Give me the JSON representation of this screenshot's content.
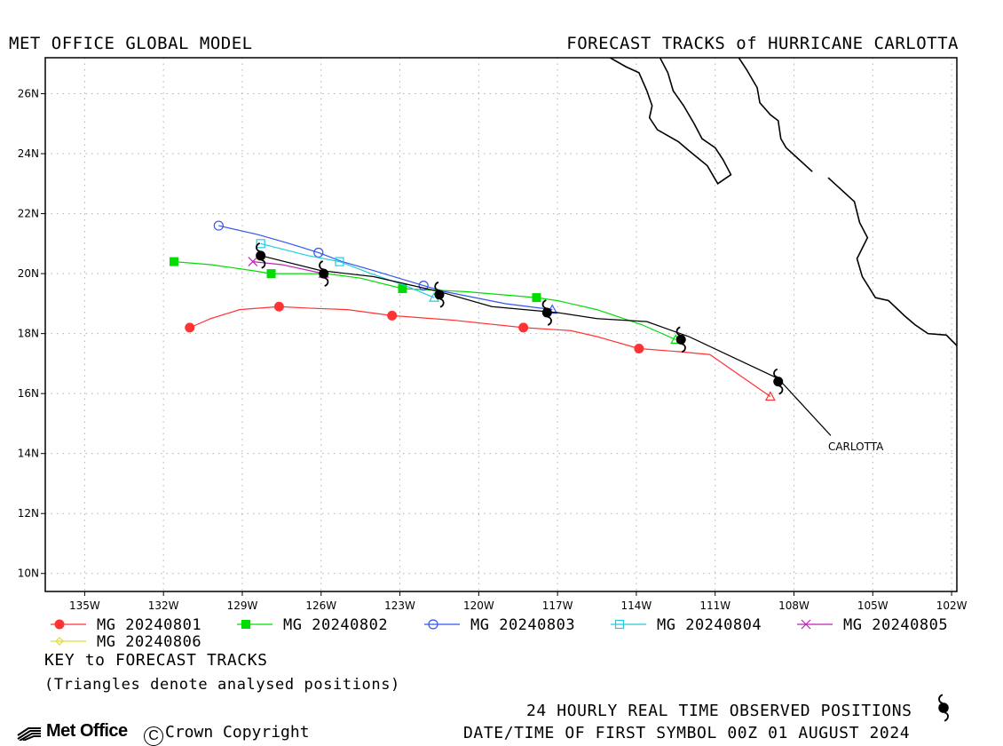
{
  "header": {
    "left": "MET OFFICE GLOBAL MODEL",
    "right": "FORECAST TRACKS of HURRICANE CARLOTTA"
  },
  "chart_data": {
    "type": "line",
    "title": "FORECAST TRACKS of HURRICANE CARLOTTA",
    "xlim": [
      -136.5,
      -101.8
    ],
    "ylim": [
      9.4,
      27.2
    ],
    "x_ticks": [
      {
        "value": -135,
        "label": "135W"
      },
      {
        "value": -132,
        "label": "132W"
      },
      {
        "value": -129,
        "label": "129W"
      },
      {
        "value": -126,
        "label": "126W"
      },
      {
        "value": -123,
        "label": "123W"
      },
      {
        "value": -120,
        "label": "120W"
      },
      {
        "value": -117,
        "label": "117W"
      },
      {
        "value": -114,
        "label": "114W"
      },
      {
        "value": -111,
        "label": "111W"
      },
      {
        "value": -108,
        "label": "108W"
      },
      {
        "value": -105,
        "label": "105W"
      },
      {
        "value": -102,
        "label": "102W"
      }
    ],
    "y_ticks": [
      {
        "value": 10,
        "label": "10N"
      },
      {
        "value": 12,
        "label": "12N"
      },
      {
        "value": 14,
        "label": "14N"
      },
      {
        "value": 16,
        "label": "16N"
      },
      {
        "value": 18,
        "label": "18N"
      },
      {
        "value": 20,
        "label": "20N"
      },
      {
        "value": 22,
        "label": "22N"
      },
      {
        "value": 24,
        "label": "24N"
      },
      {
        "value": 26,
        "label": "26N"
      }
    ],
    "grid": true,
    "observed_track": {
      "name": "CARLOTTA",
      "color": "#000000",
      "line": [
        [
          -106.6,
          14.6
        ],
        [
          -108.6,
          16.5
        ],
        [
          -112.0,
          17.9
        ],
        [
          -113.6,
          18.4
        ],
        [
          -115.5,
          18.5
        ],
        [
          -117.0,
          18.7
        ],
        [
          -119.5,
          18.9
        ],
        [
          -121.5,
          19.4
        ],
        [
          -124.0,
          19.9
        ],
        [
          -126.0,
          20.1
        ],
        [
          -128.3,
          20.6
        ]
      ],
      "symbols": [
        [
          -108.6,
          16.4
        ],
        [
          -112.3,
          17.8
        ],
        [
          -117.4,
          18.7
        ],
        [
          -121.5,
          19.3
        ],
        [
          -125.9,
          20.0
        ],
        [
          -128.3,
          20.6
        ]
      ]
    },
    "series": [
      {
        "name": "MG 20240801",
        "color": "#ff3333",
        "marker": "filled-circle",
        "analysed": [
          -108.9,
          15.9
        ],
        "line": [
          [
            -108.9,
            15.9
          ],
          [
            -111.2,
            17.3
          ],
          [
            -112.4,
            17.4
          ],
          [
            -113.9,
            17.5
          ],
          [
            -115.5,
            17.9
          ],
          [
            -116.5,
            18.1
          ],
          [
            -118.3,
            18.2
          ],
          [
            -121.0,
            18.45
          ],
          [
            -123.3,
            18.6
          ],
          [
            -125.0,
            18.8
          ],
          [
            -126.5,
            18.85
          ],
          [
            -127.6,
            18.9
          ],
          [
            -129.1,
            18.8
          ],
          [
            -130.2,
            18.5
          ],
          [
            -131.0,
            18.2
          ]
        ],
        "markers": [
          [
            -113.9,
            17.5
          ],
          [
            -118.3,
            18.2
          ],
          [
            -123.3,
            18.6
          ],
          [
            -127.6,
            18.9
          ],
          [
            -131.0,
            18.2
          ]
        ]
      },
      {
        "name": "MG 20240802",
        "color": "#00dd00",
        "marker": "filled-square",
        "analysed": [
          -112.5,
          17.8
        ],
        "line": [
          [
            -112.5,
            17.8
          ],
          [
            -113.8,
            18.3
          ],
          [
            -115.5,
            18.8
          ],
          [
            -117.0,
            19.1
          ],
          [
            -117.8,
            19.2
          ],
          [
            -120.5,
            19.4
          ],
          [
            -122.9,
            19.5
          ],
          [
            -124.5,
            19.85
          ],
          [
            -125.8,
            20.0
          ],
          [
            -127.9,
            20.0
          ],
          [
            -128.6,
            20.1
          ],
          [
            -130.2,
            20.3
          ],
          [
            -131.6,
            20.4
          ]
        ],
        "markers": [
          [
            -117.8,
            19.2
          ],
          [
            -122.9,
            19.5
          ],
          [
            -127.9,
            20.0
          ],
          [
            -131.6,
            20.4
          ]
        ]
      },
      {
        "name": "MG 20240803",
        "color": "#3355ee",
        "marker": "open-circle",
        "analysed": [
          -117.2,
          18.8
        ],
        "line": [
          [
            -117.2,
            18.8
          ],
          [
            -119.0,
            19.0
          ],
          [
            -121.3,
            19.4
          ],
          [
            -122.1,
            19.6
          ],
          [
            -124.0,
            20.1
          ],
          [
            -125.2,
            20.4
          ],
          [
            -126.1,
            20.7
          ],
          [
            -127.2,
            21.0
          ],
          [
            -128.4,
            21.3
          ],
          [
            -129.9,
            21.6
          ]
        ],
        "markers": [
          [
            -122.1,
            19.6
          ],
          [
            -126.1,
            20.7
          ],
          [
            -129.9,
            21.6
          ]
        ]
      },
      {
        "name": "MG 20240804",
        "color": "#22ccdd",
        "marker": "open-square",
        "analysed": [
          -121.7,
          19.2
        ],
        "line": [
          [
            -121.7,
            19.2
          ],
          [
            -122.8,
            19.6
          ],
          [
            -124.1,
            20.0
          ],
          [
            -125.3,
            20.4
          ],
          [
            -126.5,
            20.6
          ],
          [
            -127.4,
            20.8
          ],
          [
            -128.3,
            21.0
          ]
        ],
        "markers": [
          [
            -125.3,
            20.4
          ],
          [
            -128.3,
            21.0
          ]
        ]
      },
      {
        "name": "MG 20240805",
        "color": "#bb22bb",
        "marker": "cross",
        "analysed": [
          -125.9,
          20.0
        ],
        "line": [
          [
            -125.9,
            20.0
          ],
          [
            -127.5,
            20.3
          ],
          [
            -128.6,
            20.4
          ]
        ],
        "markers": [
          [
            -128.6,
            20.4
          ]
        ]
      },
      {
        "name": "MG 20240806",
        "color": "#dddd33",
        "marker": "open-diamond",
        "analysed": [
          -128.3,
          20.6
        ],
        "line": [
          [
            -128.3,
            20.6
          ]
        ],
        "markers": []
      }
    ],
    "storm_label": "CARLOTTA",
    "storm_label_pos": [
      -106.7,
      14.4
    ],
    "coastline": [
      [
        [
          -110.1,
          27.2
        ],
        [
          -109.8,
          26.8
        ],
        [
          -109.4,
          26.2
        ],
        [
          -109.3,
          25.7
        ],
        [
          -108.9,
          25.3
        ],
        [
          -108.6,
          25.1
        ],
        [
          -108.5,
          24.5
        ],
        [
          -108.3,
          24.2
        ],
        [
          -107.3,
          23.4
        ]
      ],
      [
        [
          -106.7,
          23.2
        ],
        [
          -106.2,
          22.8
        ],
        [
          -105.7,
          22.4
        ],
        [
          -105.5,
          21.7
        ],
        [
          -105.2,
          21.2
        ],
        [
          -105.6,
          20.5
        ],
        [
          -105.4,
          19.9
        ],
        [
          -104.9,
          19.2
        ],
        [
          -104.4,
          19.1
        ],
        [
          -103.8,
          18.6
        ],
        [
          -103.4,
          18.3
        ],
        [
          -102.9,
          18.0
        ],
        [
          -102.2,
          17.95
        ],
        [
          -101.8,
          17.6
        ]
      ],
      [
        [
          -115.0,
          27.2
        ],
        [
          -114.4,
          26.9
        ],
        [
          -113.9,
          26.7
        ],
        [
          -113.6,
          26.1
        ],
        [
          -113.4,
          25.6
        ],
        [
          -113.5,
          25.2
        ],
        [
          -113.2,
          24.8
        ],
        [
          -112.4,
          24.4
        ],
        [
          -112.0,
          24.1
        ],
        [
          -111.3,
          23.6
        ],
        [
          -110.9,
          23.0
        ],
        [
          -110.4,
          23.3
        ],
        [
          -110.7,
          23.8
        ],
        [
          -111.0,
          24.2
        ],
        [
          -111.5,
          24.5
        ],
        [
          -111.8,
          25.0
        ],
        [
          -112.2,
          25.6
        ],
        [
          -112.6,
          26.1
        ],
        [
          -112.8,
          26.7
        ],
        [
          -113.1,
          27.2
        ]
      ]
    ]
  },
  "legend": {
    "entries": [
      {
        "label": "MG 20240801",
        "color": "#ff3333",
        "marker": "filled-circle"
      },
      {
        "label": "MG 20240802",
        "color": "#00dd00",
        "marker": "filled-square"
      },
      {
        "label": "MG 20240803",
        "color": "#3355ee",
        "marker": "open-circle"
      },
      {
        "label": "MG 20240804",
        "color": "#22ccdd",
        "marker": "open-square"
      },
      {
        "label": "MG 20240805",
        "color": "#bb22bb",
        "marker": "cross"
      },
      {
        "label": "MG 20240806",
        "color": "#dddd33",
        "marker": "open-diamond"
      }
    ]
  },
  "footer": {
    "key_title": "KEY to FORECAST TRACKS",
    "key_note": "(Triangles denote analysed positions)",
    "obs_label": "24 HOURLY REAL TIME OBSERVED POSITIONS",
    "datetime_label": "DATE/TIME OF FIRST SYMBOL 00Z 01 AUGUST 2024",
    "brand": "Met Office",
    "copyright": "Crown Copyright"
  }
}
